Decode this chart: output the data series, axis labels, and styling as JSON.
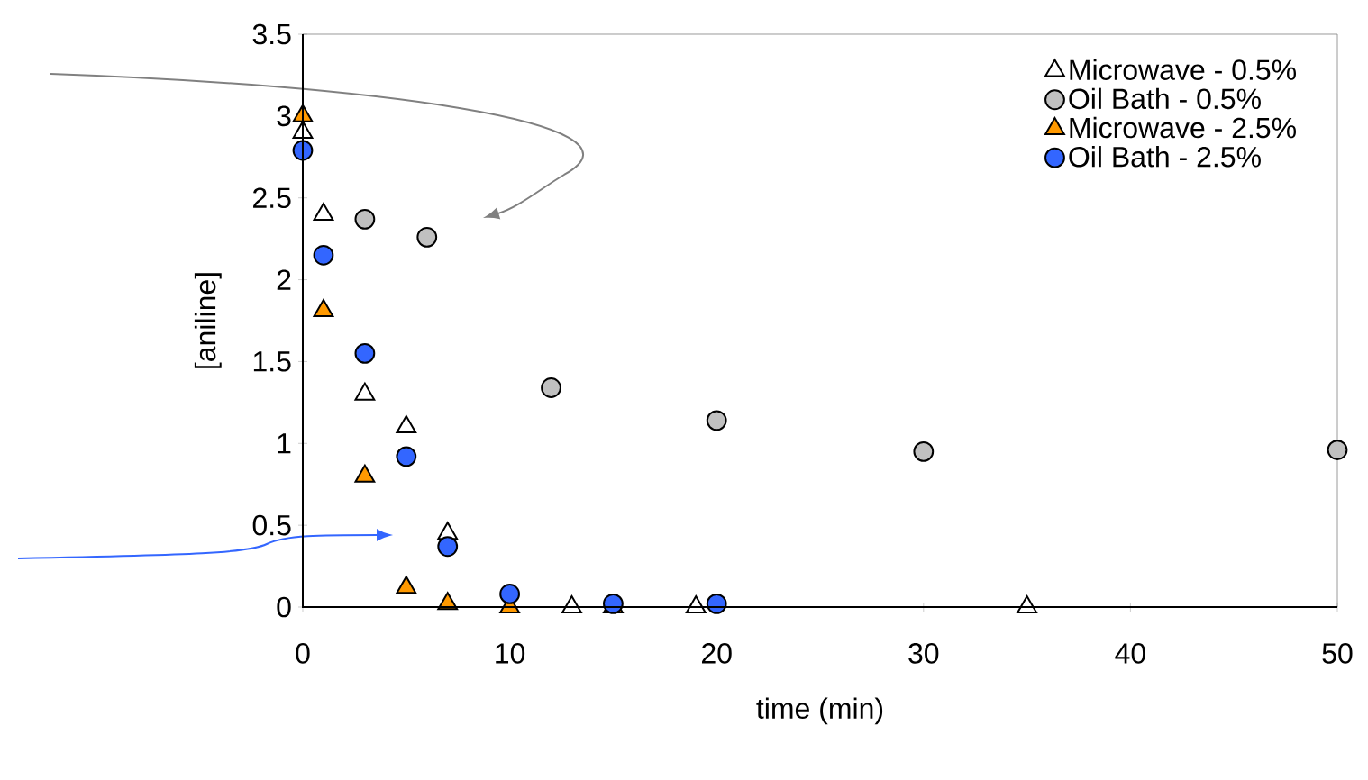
{
  "chart_data": {
    "type": "scatter",
    "xlabel": "time (min)",
    "ylabel": "[aniline]",
    "xlim": [
      0,
      50
    ],
    "ylim": [
      0,
      3.5
    ],
    "xticks": [
      0,
      10,
      20,
      30,
      40,
      50
    ],
    "yticks": [
      0,
      0.5,
      1,
      1.5,
      2,
      2.5,
      3,
      3.5
    ],
    "grid": false,
    "legend": "top right",
    "series": [
      {
        "name": "Microwave - 0.5%",
        "color": "#ffffff",
        "marker": "triangle",
        "x": [
          0,
          1,
          3,
          5,
          7,
          13,
          19,
          35
        ],
        "values": [
          2.9,
          2.4,
          1.3,
          1.1,
          0.45,
          0,
          0,
          0
        ]
      },
      {
        "name": "Oil Bath - 0.5%",
        "color": "#c0c0c0",
        "marker": "circle",
        "x": [
          3,
          6,
          12,
          20,
          30,
          50
        ],
        "values": [
          2.37,
          2.26,
          1.34,
          1.14,
          0.95,
          0.96
        ]
      },
      {
        "name": "Microwave - 2.5%",
        "color": "#ff9900",
        "marker": "triangle",
        "x": [
          0,
          1,
          3,
          5,
          7,
          10,
          15
        ],
        "values": [
          3.0,
          1.81,
          0.8,
          0.12,
          0.02,
          0,
          0
        ]
      },
      {
        "name": "Oil Bath - 2.5%",
        "color": "#3366ff",
        "marker": "circle",
        "x": [
          0,
          1,
          3,
          5,
          7,
          10,
          15,
          20
        ],
        "values": [
          2.79,
          2.15,
          1.55,
          0.92,
          0.37,
          0.08,
          0.02,
          0.02
        ]
      }
    ]
  }
}
